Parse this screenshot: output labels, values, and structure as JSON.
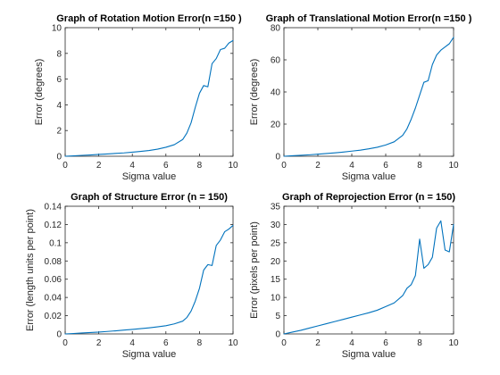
{
  "chart_data": [
    {
      "type": "line",
      "title": "Graph of Rotation Motion Error(n =150 )",
      "xlabel": "Sigma value",
      "ylabel": "Error (degrees)",
      "xlim": [
        0,
        10
      ],
      "ylim": [
        0,
        10
      ],
      "xticks": [
        "0",
        "2",
        "4",
        "6",
        "8",
        "10"
      ],
      "yticks": [
        "0",
        "2",
        "4",
        "6",
        "8",
        "10"
      ],
      "color": "#0072BD",
      "grid": false,
      "x": [
        0,
        0.5,
        1,
        1.5,
        2,
        2.5,
        3,
        3.5,
        4,
        4.5,
        5,
        5.5,
        6,
        6.5,
        7,
        7.25,
        7.5,
        7.75,
        8,
        8.25,
        8.5,
        8.75,
        9,
        9.25,
        9.5,
        9.75,
        10
      ],
      "y": [
        0,
        0.03,
        0.07,
        0.1,
        0.14,
        0.18,
        0.22,
        0.26,
        0.32,
        0.38,
        0.45,
        0.55,
        0.7,
        0.9,
        1.3,
        1.8,
        2.6,
        3.8,
        4.9,
        5.5,
        5.4,
        7.2,
        7.6,
        8.3,
        8.4,
        8.8,
        9.0
      ]
    },
    {
      "type": "line",
      "title": "Graph of Translational Motion Error(n =150 )",
      "xlabel": "Sigma value",
      "ylabel": "Error (degrees)",
      "xlim": [
        0,
        10
      ],
      "ylim": [
        0,
        80
      ],
      "xticks": [
        "0",
        "2",
        "4",
        "6",
        "8",
        "10"
      ],
      "yticks": [
        "0",
        "20",
        "40",
        "60",
        "80"
      ],
      "color": "#0072BD",
      "grid": false,
      "x": [
        0,
        0.5,
        1,
        1.5,
        2,
        2.5,
        3,
        3.5,
        4,
        4.5,
        5,
        5.5,
        6,
        6.5,
        7,
        7.25,
        7.5,
        7.75,
        8,
        8.25,
        8.5,
        8.75,
        9,
        9.25,
        9.5,
        9.75,
        10
      ],
      "y": [
        0,
        0.3,
        0.6,
        0.9,
        1.3,
        1.7,
        2.1,
        2.6,
        3.2,
        3.8,
        4.6,
        5.6,
        7.0,
        9.0,
        13,
        17,
        23,
        30,
        38,
        46,
        47,
        57,
        63,
        66,
        68,
        70,
        74
      ]
    },
    {
      "type": "line",
      "title": "Graph of Structure Error (n = 150)",
      "xlabel": "Sigma value",
      "ylabel": "Error (length units per point)",
      "xlim": [
        0,
        10
      ],
      "ylim": [
        0,
        0.14
      ],
      "xticks": [
        "0",
        "2",
        "4",
        "6",
        "8",
        "10"
      ],
      "yticks": [
        "0",
        "0.02",
        "0.04",
        "0.06",
        "0.08",
        "0.1",
        "0.12",
        "0.14"
      ],
      "color": "#0072BD",
      "grid": false,
      "x": [
        0,
        0.5,
        1,
        1.5,
        2,
        2.5,
        3,
        3.5,
        4,
        4.5,
        5,
        5.5,
        6,
        6.5,
        7,
        7.25,
        7.5,
        7.75,
        8,
        8.25,
        8.5,
        8.75,
        9,
        9.25,
        9.5,
        9.75,
        10
      ],
      "y": [
        0,
        0.0005,
        0.001,
        0.0015,
        0.002,
        0.0027,
        0.0034,
        0.0042,
        0.005,
        0.0058,
        0.0067,
        0.0078,
        0.009,
        0.011,
        0.014,
        0.018,
        0.025,
        0.036,
        0.05,
        0.07,
        0.076,
        0.075,
        0.097,
        0.103,
        0.112,
        0.115,
        0.119
      ]
    },
    {
      "type": "line",
      "title": "Graph of Reprojection Error (n = 150)",
      "xlabel": "Sigma value",
      "ylabel": "Error (pixels per point)",
      "xlim": [
        0,
        10
      ],
      "ylim": [
        0,
        35
      ],
      "xticks": [
        "0",
        "2",
        "4",
        "6",
        "8",
        "10"
      ],
      "yticks": [
        "0",
        "5",
        "10",
        "15",
        "20",
        "25",
        "30",
        "35"
      ],
      "color": "#0072BD",
      "grid": false,
      "x": [
        0,
        0.5,
        1,
        1.5,
        2,
        2.5,
        3,
        3.5,
        4,
        4.5,
        5,
        5.5,
        6,
        6.5,
        7,
        7.25,
        7.5,
        7.75,
        8,
        8.25,
        8.5,
        8.75,
        9,
        9.25,
        9.5,
        9.75,
        10
      ],
      "y": [
        0,
        0.5,
        1.0,
        1.6,
        2.2,
        2.8,
        3.4,
        4.0,
        4.6,
        5.2,
        5.8,
        6.5,
        7.5,
        8.5,
        10.5,
        12.5,
        13.5,
        16,
        26,
        18,
        19,
        21,
        29,
        31,
        23,
        22.5,
        30
      ]
    }
  ]
}
